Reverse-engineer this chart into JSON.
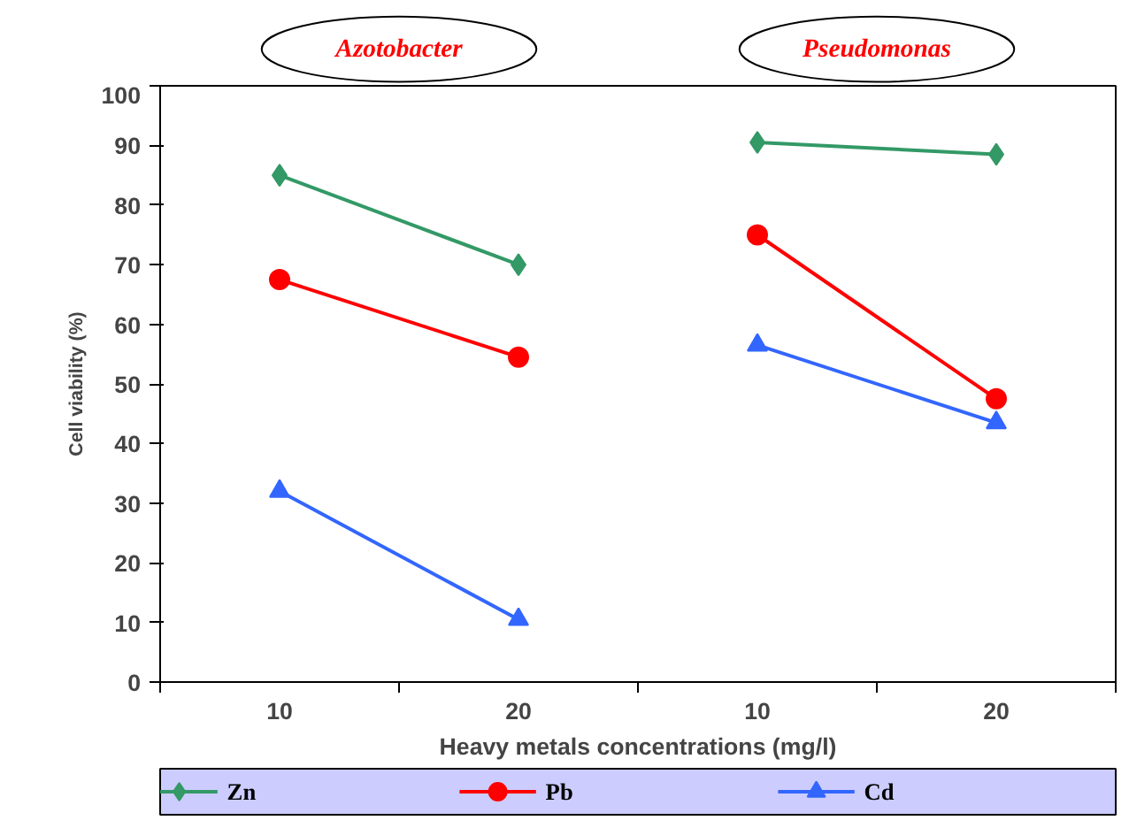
{
  "chart_data": {
    "type": "line",
    "categories": [
      "10",
      "20",
      "10",
      "20"
    ],
    "xlabel": "Heavy metals concentrations (mg/l)",
    "ylabel": "Cell viability (%)",
    "ylim": [
      0,
      100
    ],
    "yticks": [
      0,
      10,
      20,
      30,
      40,
      50,
      60,
      70,
      80,
      90,
      100
    ],
    "grid": false,
    "legend": "bottom",
    "annotations": [
      "Azotobacter",
      "Pseudomonas"
    ],
    "series": [
      {
        "name": "Zn",
        "color": "#339966",
        "marker": "diamond",
        "values": [
          85,
          70,
          null,
          null
        ]
      },
      {
        "color": "#339966",
        "marker": "diamond",
        "values": [
          null,
          null,
          90.5,
          88.5
        ]
      },
      {
        "name": "Pb",
        "color": "#ff0000",
        "marker": "circle",
        "values": [
          67.5,
          54.5,
          null,
          null
        ]
      },
      {
        "color": "#ff0000",
        "marker": "circle",
        "values": [
          null,
          null,
          75,
          47.5
        ]
      },
      {
        "name": "Cd",
        "color": "#3366ff",
        "marker": "triangle",
        "values": [
          32,
          10.5,
          null,
          null
        ]
      },
      {
        "color": "#3366ff",
        "marker": "triangle",
        "values": [
          null,
          null,
          56.5,
          43.5
        ]
      }
    ]
  }
}
